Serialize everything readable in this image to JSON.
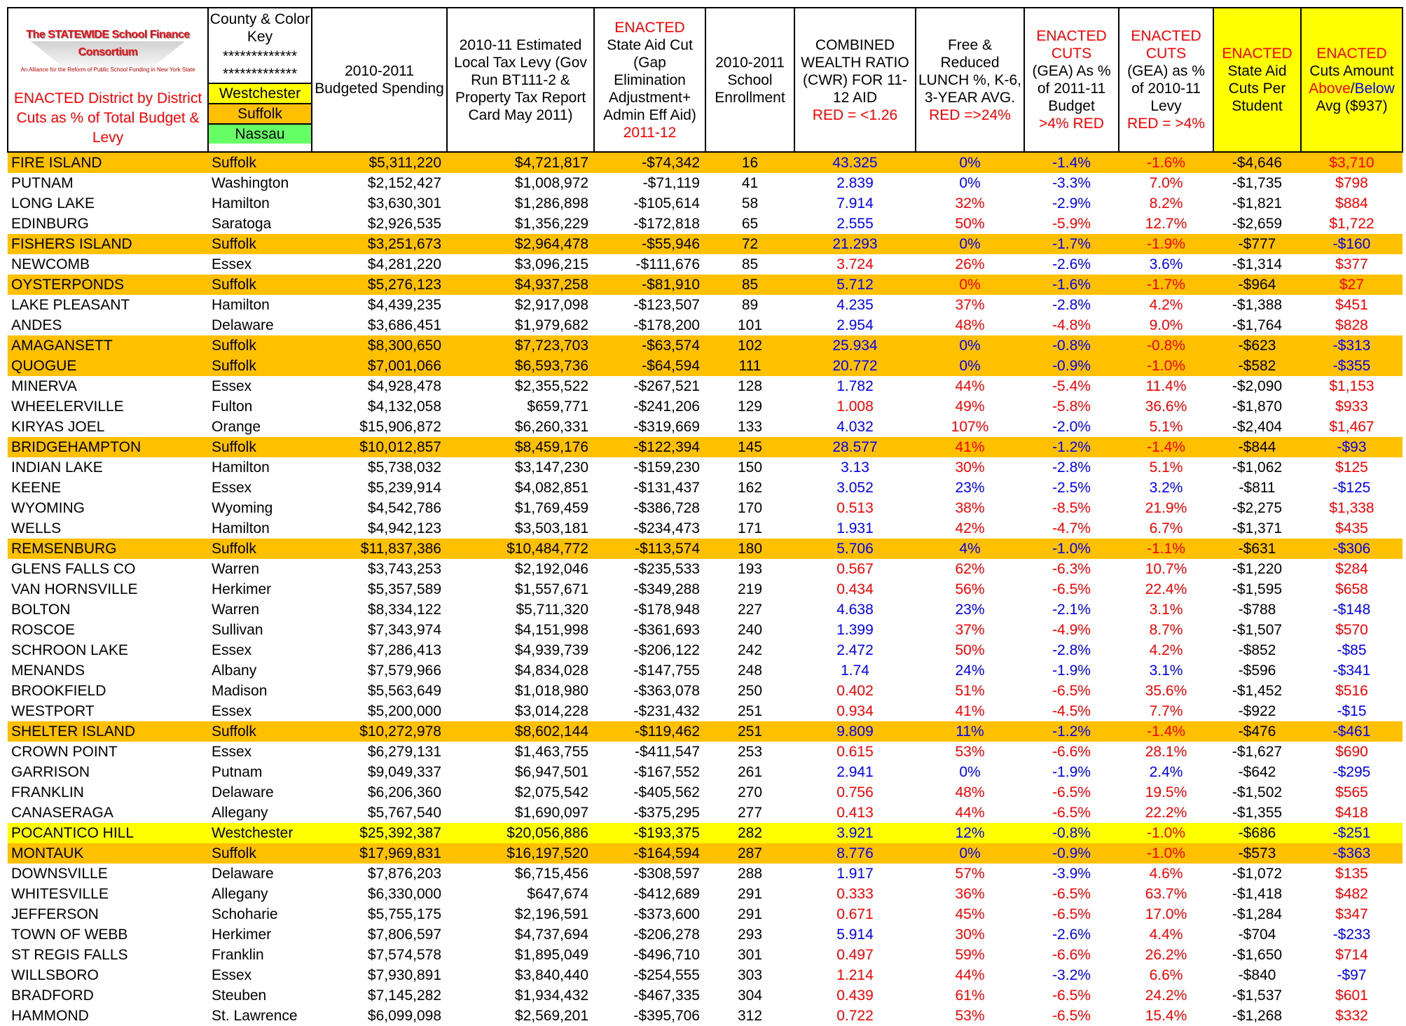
{
  "header": {
    "logo": {
      "title": "The STATEWIDE School Finance Consortium",
      "subtitle": "An Alliance for the Reform of Public School Funding in New York State"
    },
    "caption": "ENACTED District by District Cuts as % of Total Budget & Levy",
    "key_title": "County & Color Key",
    "key_stars": [
      "*************",
      "*************"
    ],
    "key": [
      {
        "text": "Westchester",
        "color": "#ffff00"
      },
      {
        "text": "Suffolk",
        "color": "#ffc000"
      },
      {
        "text": "Nassau",
        "color": "#66ff66"
      }
    ],
    "columns": [
      {
        "lines": [
          "2010-2011 Budgeted Spending"
        ]
      },
      {
        "lines": [
          "2010-11 Estimated Local Tax Levy (Gov Run BT111-2 & Property Tax Report Card May 2011)"
        ]
      },
      {
        "lines": [
          {
            "text": "ENACTED",
            "color": "#ff0000"
          },
          "State Aid Cut (Gap Elimination Adjustment+ Admin Eff Aid)",
          {
            "text": "2011-12",
            "color": "#ff0000"
          }
        ]
      },
      {
        "lines": [
          "2010-2011 School Enrollment"
        ]
      },
      {
        "lines": [
          "COMBINED WEALTH RATIO (CWR) FOR 11-12 AID",
          {
            "text": "RED = <1.26",
            "color": "#ff0000"
          }
        ]
      },
      {
        "lines": [
          "Free & Reduced LUNCH %, K-6, 3-YEAR AVG.",
          {
            "text": "RED =>24%",
            "color": "#ff0000"
          }
        ]
      },
      {
        "lines": [
          {
            "text": "ENACTED CUTS",
            "color": "#ff0000"
          },
          "(GEA) As % of 2011-11 Budget",
          {
            "text": ">4% RED",
            "color": "#ff0000"
          }
        ]
      },
      {
        "lines": [
          {
            "text": "ENACTED CUTS",
            "color": "#ff0000"
          },
          "(GEA) as % of 2010-11 Levy",
          {
            "text": "RED = >4%",
            "color": "#ff0000"
          }
        ]
      },
      {
        "lines": [
          {
            "text": "ENACTED",
            "color": "#ff0000"
          },
          "State Aid Cuts Per Student"
        ],
        "background": "#ffff00"
      },
      {
        "lines": [
          {
            "text": "ENACTED",
            "color": "#ff0000"
          },
          "Cuts Amount",
          [
            {
              "text": "Above",
              "color": "#ff0000"
            },
            {
              "text": "/"
            },
            {
              "text": "Below",
              "color": "#0000ff"
            }
          ],
          "Avg ($937)"
        ],
        "background": "#ffff00"
      }
    ]
  },
  "table": {
    "rows": [
      {
        "cells": [
          "FIRE ISLAND",
          "Suffolk",
          "$5,311,220",
          "$4,721,817",
          "-$74,342",
          "16",
          "43.325",
          "0%",
          "-1.4%",
          "-1.6%",
          "-$4,646",
          "$3,710"
        ],
        "colors": "bbbrr"
      },
      {
        "cells": [
          "PUTNAM",
          "Washington",
          "$2,152,427",
          "$1,008,972",
          "-$71,119",
          "41",
          "2.839",
          "0%",
          "-3.3%",
          "7.0%",
          "-$1,735",
          "$798"
        ],
        "colors": "bbbrr"
      },
      {
        "cells": [
          "LONG LAKE",
          "Hamilton",
          "$3,630,301",
          "$1,286,898",
          "-$105,614",
          "58",
          "7.914",
          "32%",
          "-2.9%",
          "8.2%",
          "-$1,821",
          "$884"
        ],
        "colors": "brbrr"
      },
      {
        "cells": [
          "EDINBURG",
          "Saratoga",
          "$2,926,535",
          "$1,356,229",
          "-$172,818",
          "65",
          "2.555",
          "50%",
          "-5.9%",
          "12.7%",
          "-$2,659",
          "$1,722"
        ],
        "colors": "brrrr"
      },
      {
        "cells": [
          "FISHERS ISLAND",
          "Suffolk",
          "$3,251,673",
          "$2,964,478",
          "-$55,946",
          "72",
          "21.293",
          "0%",
          "-1.7%",
          "-1.9%",
          "-$777",
          "-$160"
        ],
        "colors": "bbbrb"
      },
      {
        "cells": [
          "NEWCOMB",
          "Essex",
          "$4,281,220",
          "$3,096,215",
          "-$111,676",
          "85",
          "3.724",
          "26%",
          "-2.6%",
          "3.6%",
          "-$1,314",
          "$377"
        ],
        "colors": "rrbbr"
      },
      {
        "cells": [
          "OYSTERPONDS",
          "Suffolk",
          "$5,276,123",
          "$4,937,258",
          "-$81,910",
          "85",
          "5.712",
          "0%",
          "-1.6%",
          "-1.7%",
          "-$964",
          "$27"
        ],
        "colors": "brbrr"
      },
      {
        "cells": [
          "LAKE PLEASANT",
          "Hamilton",
          "$4,439,235",
          "$2,917,098",
          "-$123,507",
          "89",
          "4.235",
          "37%",
          "-2.8%",
          "4.2%",
          "-$1,388",
          "$451"
        ],
        "colors": "brbrr"
      },
      {
        "cells": [
          "ANDES",
          "Delaware",
          "$3,686,451",
          "$1,979,682",
          "-$178,200",
          "101",
          "2.954",
          "48%",
          "-4.8%",
          "9.0%",
          "-$1,764",
          "$828"
        ],
        "colors": "brrrr"
      },
      {
        "cells": [
          "AMAGANSETT",
          "Suffolk",
          "$8,300,650",
          "$7,723,703",
          "-$63,574",
          "102",
          "25.934",
          "0%",
          "-0.8%",
          "-0.8%",
          "-$623",
          "-$313"
        ],
        "colors": "bbbrb"
      },
      {
        "cells": [
          "QUOGUE",
          "Suffolk",
          "$7,001,066",
          "$6,593,736",
          "-$64,594",
          "111",
          "20.772",
          "0%",
          "-0.9%",
          "-1.0%",
          "-$582",
          "-$355"
        ],
        "colors": "bbbrb"
      },
      {
        "cells": [
          "MINERVA",
          "Essex",
          "$4,928,478",
          "$2,355,522",
          "-$267,521",
          "128",
          "1.782",
          "44%",
          "-5.4%",
          "11.4%",
          "-$2,090",
          "$1,153"
        ],
        "colors": "brrrr"
      },
      {
        "cells": [
          "WHEELERVILLE",
          "Fulton",
          "$4,132,058",
          "$659,771",
          "-$241,206",
          "129",
          "1.008",
          "49%",
          "-5.8%",
          "36.6%",
          "-$1,870",
          "$933"
        ],
        "colors": "rrrrr"
      },
      {
        "cells": [
          "KIRYAS JOEL",
          "Orange",
          "$15,906,872",
          "$6,260,331",
          "-$319,669",
          "133",
          "4.032",
          "107%",
          "-2.0%",
          "5.1%",
          "-$2,404",
          "$1,467"
        ],
        "colors": "brbrr"
      },
      {
        "cells": [
          "BRIDGEHAMPTON",
          "Suffolk",
          "$10,012,857",
          "$8,459,176",
          "-$122,394",
          "145",
          "28.577",
          "41%",
          "-1.2%",
          "-1.4%",
          "-$844",
          "-$93"
        ],
        "colors": "brbrb"
      },
      {
        "cells": [
          "INDIAN LAKE",
          "Hamilton",
          "$5,738,032",
          "$3,147,230",
          "-$159,230",
          "150",
          "3.13",
          "30%",
          "-2.8%",
          "5.1%",
          "-$1,062",
          "$125"
        ],
        "colors": "brbrr"
      },
      {
        "cells": [
          "KEENE",
          "Essex",
          "$5,239,914",
          "$4,082,851",
          "-$131,437",
          "162",
          "3.052",
          "23%",
          "-2.5%",
          "3.2%",
          "-$811",
          "-$125"
        ],
        "colors": "bbbbb"
      },
      {
        "cells": [
          "WYOMING",
          "Wyoming",
          "$4,542,786",
          "$1,769,459",
          "-$386,728",
          "170",
          "0.513",
          "38%",
          "-8.5%",
          "21.9%",
          "-$2,275",
          "$1,338"
        ],
        "colors": "rrrrr"
      },
      {
        "cells": [
          "WELLS",
          "Hamilton",
          "$4,942,123",
          "$3,503,181",
          "-$234,473",
          "171",
          "1.931",
          "42%",
          "-4.7%",
          "6.7%",
          "-$1,371",
          "$435"
        ],
        "colors": "brrrr"
      },
      {
        "cells": [
          "REMSENBURG",
          "Suffolk",
          "$11,837,386",
          "$10,484,772",
          "-$113,574",
          "180",
          "5.706",
          "4%",
          "-1.0%",
          "-1.1%",
          "-$631",
          "-$306"
        ],
        "colors": "bbbrb"
      },
      {
        "cells": [
          "GLENS FALLS CO",
          "Warren",
          "$3,743,253",
          "$2,192,046",
          "-$235,533",
          "193",
          "0.567",
          "62%",
          "-6.3%",
          "10.7%",
          "-$1,220",
          "$284"
        ],
        "colors": "rrrrr"
      },
      {
        "cells": [
          "VAN HORNSVILLE",
          "Herkimer",
          "$5,357,589",
          "$1,557,671",
          "-$349,288",
          "219",
          "0.434",
          "56%",
          "-6.5%",
          "22.4%",
          "-$1,595",
          "$658"
        ],
        "colors": "rrrrr"
      },
      {
        "cells": [
          "BOLTON",
          "Warren",
          "$8,334,122",
          "$5,711,320",
          "-$178,948",
          "227",
          "4.638",
          "23%",
          "-2.1%",
          "3.1%",
          "-$788",
          "-$148"
        ],
        "colors": "bbbrb"
      },
      {
        "cells": [
          "ROSCOE",
          "Sullivan",
          "$7,343,974",
          "$4,151,998",
          "-$361,693",
          "240",
          "1.399",
          "37%",
          "-4.9%",
          "8.7%",
          "-$1,507",
          "$570"
        ],
        "colors": "brrrr"
      },
      {
        "cells": [
          "SCHROON LAKE",
          "Essex",
          "$7,286,413",
          "$4,939,739",
          "-$206,122",
          "242",
          "2.472",
          "50%",
          "-2.8%",
          "4.2%",
          "-$852",
          "-$85"
        ],
        "colors": "brbrb"
      },
      {
        "cells": [
          "MENANDS",
          "Albany",
          "$7,579,966",
          "$4,834,028",
          "-$147,755",
          "248",
          "1.74",
          "24%",
          "-1.9%",
          "3.1%",
          "-$596",
          "-$341"
        ],
        "colors": "bbbbb"
      },
      {
        "cells": [
          "BROOKFIELD",
          "Madison",
          "$5,563,649",
          "$1,018,980",
          "-$363,078",
          "250",
          "0.402",
          "51%",
          "-6.5%",
          "35.6%",
          "-$1,452",
          "$516"
        ],
        "colors": "rrrrr"
      },
      {
        "cells": [
          "WESTPORT",
          "Essex",
          "$5,200,000",
          "$3,014,228",
          "-$231,432",
          "251",
          "0.934",
          "41%",
          "-4.5%",
          "7.7%",
          "-$922",
          "-$15"
        ],
        "colors": "rrrrb"
      },
      {
        "cells": [
          "SHELTER ISLAND",
          "Suffolk",
          "$10,272,978",
          "$8,602,144",
          "-$119,462",
          "251",
          "9.809",
          "11%",
          "-1.2%",
          "-1.4%",
          "-$476",
          "-$461"
        ],
        "colors": "bbbrb"
      },
      {
        "cells": [
          "CROWN POINT",
          "Essex",
          "$6,279,131",
          "$1,463,755",
          "-$411,547",
          "253",
          "0.615",
          "53%",
          "-6.6%",
          "28.1%",
          "-$1,627",
          "$690"
        ],
        "colors": "rrrrr"
      },
      {
        "cells": [
          "GARRISON",
          "Putnam",
          "$9,049,337",
          "$6,947,501",
          "-$167,552",
          "261",
          "2.941",
          "0%",
          "-1.9%",
          "2.4%",
          "-$642",
          "-$295"
        ],
        "colors": "bbbbb"
      },
      {
        "cells": [
          "FRANKLIN",
          "Delaware",
          "$6,206,360",
          "$2,075,542",
          "-$405,562",
          "270",
          "0.756",
          "48%",
          "-6.5%",
          "19.5%",
          "-$1,502",
          "$565"
        ],
        "colors": "rrrrr"
      },
      {
        "cells": [
          "CANASERAGA",
          "Allegany",
          "$5,767,540",
          "$1,690,097",
          "-$375,295",
          "277",
          "0.413",
          "44%",
          "-6.5%",
          "22.2%",
          "-$1,355",
          "$418"
        ],
        "colors": "rrrrr"
      },
      {
        "cells": [
          "POCANTICO HILL",
          "Westchester",
          "$25,392,387",
          "$20,056,886",
          "-$193,375",
          "282",
          "3.921",
          "12%",
          "-0.8%",
          "-1.0%",
          "-$686",
          "-$251"
        ],
        "colors": "bbbrb"
      },
      {
        "cells": [
          "MONTAUK",
          "Suffolk",
          "$17,969,831",
          "$16,197,520",
          "-$164,594",
          "287",
          "8.776",
          "0%",
          "-0.9%",
          "-1.0%",
          "-$573",
          "-$363"
        ],
        "colors": "bbbrb"
      },
      {
        "cells": [
          "DOWNSVILLE",
          "Delaware",
          "$7,876,203",
          "$6,715,456",
          "-$308,597",
          "288",
          "1.917",
          "57%",
          "-3.9%",
          "4.6%",
          "-$1,072",
          "$135"
        ],
        "colors": "brbrr"
      },
      {
        "cells": [
          "WHITESVILLE",
          "Allegany",
          "$6,330,000",
          "$647,674",
          "-$412,689",
          "291",
          "0.333",
          "36%",
          "-6.5%",
          "63.7%",
          "-$1,418",
          "$482"
        ],
        "colors": "rrrrr"
      },
      {
        "cells": [
          "JEFFERSON",
          "Schoharie",
          "$5,755,175",
          "$2,196,591",
          "-$373,600",
          "291",
          "0.671",
          "45%",
          "-6.5%",
          "17.0%",
          "-$1,284",
          "$347"
        ],
        "colors": "rrrrr"
      },
      {
        "cells": [
          "TOWN OF WEBB",
          "Herkimer",
          "$7,806,597",
          "$4,737,694",
          "-$206,278",
          "293",
          "5.914",
          "30%",
          "-2.6%",
          "4.4%",
          "-$704",
          "-$233"
        ],
        "colors": "brbrb"
      },
      {
        "cells": [
          "ST REGIS FALLS",
          "Franklin",
          "$7,574,578",
          "$1,895,049",
          "-$496,710",
          "301",
          "0.497",
          "59%",
          "-6.6%",
          "26.2%",
          "-$1,650",
          "$714"
        ],
        "colors": "rrrrr"
      },
      {
        "cells": [
          "WILLSBORO",
          "Essex",
          "$7,930,891",
          "$3,840,440",
          "-$254,555",
          "303",
          "1.214",
          "44%",
          "-3.2%",
          "6.6%",
          "-$840",
          "-$97"
        ],
        "colors": "rrbrb"
      },
      {
        "cells": [
          "BRADFORD",
          "Steuben",
          "$7,145,282",
          "$1,934,432",
          "-$467,335",
          "304",
          "0.439",
          "61%",
          "-6.5%",
          "24.2%",
          "-$1,537",
          "$601"
        ],
        "colors": "rrrrr"
      },
      {
        "cells": [
          "HAMMOND",
          "St. Lawrence",
          "$6,099,098",
          "$2,569,201",
          "-$395,706",
          "312",
          "0.722",
          "53%",
          "-6.5%",
          "15.4%",
          "-$1,268",
          "$332"
        ],
        "colors": "rrrrr"
      }
    ]
  }
}
